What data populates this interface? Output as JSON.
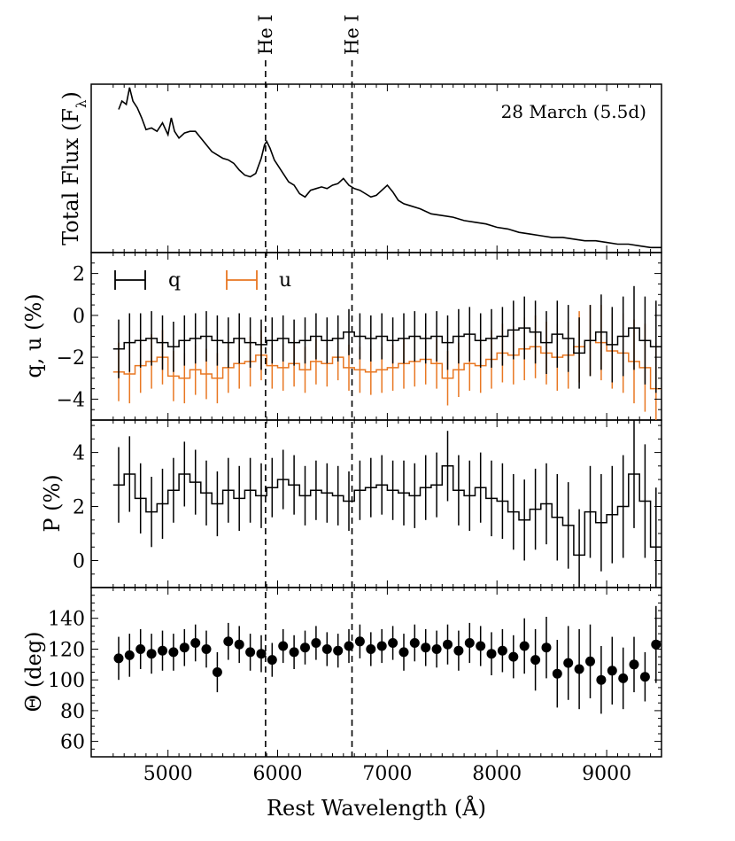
{
  "chart_data": [
    {
      "type": "line",
      "panel": "flux",
      "ylabel": "Total Flux (F",
      "ylabel_subscript": "λ",
      "ylabel_close": ")",
      "annotation": "28 March (5.5d)",
      "xlim": [
        4300,
        9500
      ],
      "ylim": [
        0,
        1
      ],
      "y_ticks_shown": false,
      "x": [
        4550,
        4580,
        4620,
        4650,
        4680,
        4720,
        4760,
        4800,
        4850,
        4900,
        4950,
        5000,
        5030,
        5060,
        5100,
        5150,
        5200,
        5250,
        5300,
        5350,
        5400,
        5450,
        5500,
        5550,
        5600,
        5650,
        5700,
        5750,
        5800,
        5850,
        5880,
        5900,
        5930,
        5970,
        6000,
        6050,
        6100,
        6150,
        6200,
        6250,
        6300,
        6350,
        6400,
        6450,
        6500,
        6550,
        6600,
        6650,
        6700,
        6750,
        6800,
        6850,
        6900,
        6950,
        7000,
        7050,
        7100,
        7150,
        7200,
        7300,
        7400,
        7500,
        7600,
        7700,
        7800,
        7900,
        8000,
        8100,
        8200,
        8300,
        8400,
        8500,
        8600,
        8700,
        8800,
        8900,
        9000,
        9100,
        9200,
        9300,
        9400,
        9500
      ],
      "y": [
        0.85,
        0.9,
        0.88,
        0.98,
        0.9,
        0.86,
        0.8,
        0.73,
        0.74,
        0.72,
        0.77,
        0.7,
        0.8,
        0.72,
        0.68,
        0.71,
        0.72,
        0.72,
        0.68,
        0.64,
        0.6,
        0.58,
        0.56,
        0.55,
        0.53,
        0.49,
        0.46,
        0.45,
        0.47,
        0.56,
        0.64,
        0.66,
        0.62,
        0.55,
        0.52,
        0.47,
        0.42,
        0.4,
        0.35,
        0.33,
        0.37,
        0.38,
        0.39,
        0.38,
        0.4,
        0.41,
        0.44,
        0.4,
        0.38,
        0.37,
        0.35,
        0.33,
        0.34,
        0.37,
        0.4,
        0.36,
        0.31,
        0.29,
        0.28,
        0.26,
        0.23,
        0.22,
        0.21,
        0.19,
        0.18,
        0.17,
        0.15,
        0.14,
        0.12,
        0.11,
        0.1,
        0.09,
        0.09,
        0.08,
        0.07,
        0.07,
        0.06,
        0.05,
        0.05,
        0.04,
        0.03,
        0.03
      ]
    },
    {
      "type": "line",
      "panel": "qu",
      "style": "step-with-errorbars",
      "ylabel": "q, u (%)",
      "xlim": [
        4300,
        9500
      ],
      "ylim": [
        -5,
        3
      ],
      "yticks": [
        -4,
        -2,
        0,
        2
      ],
      "series": [
        {
          "name": "q",
          "color": "#000000",
          "x": [
            4550,
            4650,
            4750,
            4850,
            4950,
            5050,
            5150,
            5250,
            5350,
            5450,
            5550,
            5650,
            5750,
            5850,
            5950,
            6050,
            6150,
            6250,
            6350,
            6450,
            6550,
            6650,
            6750,
            6850,
            6950,
            7050,
            7150,
            7250,
            7350,
            7450,
            7550,
            7650,
            7750,
            7850,
            7950,
            8050,
            8150,
            8250,
            8350,
            8450,
            8550,
            8650,
            8750,
            8850,
            8950,
            9050,
            9150,
            9250,
            9350,
            9450
          ],
          "values": [
            -1.6,
            -1.3,
            -1.2,
            -1.1,
            -1.3,
            -1.5,
            -1.2,
            -1.1,
            -1.0,
            -1.2,
            -1.3,
            -1.1,
            -1.3,
            -1.4,
            -1.2,
            -1.1,
            -1.3,
            -1.2,
            -1.0,
            -1.2,
            -1.1,
            -0.8,
            -1.0,
            -1.1,
            -1.0,
            -1.2,
            -1.1,
            -1.0,
            -1.1,
            -1.0,
            -1.3,
            -1.0,
            -0.9,
            -1.2,
            -1.1,
            -1.0,
            -0.7,
            -0.6,
            -0.8,
            -1.3,
            -0.9,
            -1.1,
            -1.8,
            -1.2,
            -0.8,
            -1.4,
            -1.0,
            -0.6,
            -1.2,
            -1.5
          ],
          "errors": [
            1.4,
            1.4,
            1.3,
            1.3,
            1.3,
            1.2,
            1.2,
            1.2,
            1.2,
            1.2,
            1.2,
            1.2,
            1.2,
            1.2,
            1.1,
            1.1,
            1.1,
            1.1,
            1.1,
            1.1,
            1.1,
            1.1,
            1.1,
            1.1,
            1.1,
            1.1,
            1.2,
            1.2,
            1.2,
            1.2,
            1.3,
            1.3,
            1.3,
            1.3,
            1.4,
            1.4,
            1.4,
            1.5,
            1.5,
            1.5,
            1.6,
            1.6,
            1.7,
            1.7,
            1.8,
            1.8,
            1.9,
            2.0,
            2.1,
            2.2
          ]
        },
        {
          "name": "u",
          "color": "#e87722",
          "x": [
            4550,
            4650,
            4750,
            4850,
            4950,
            5050,
            5150,
            5250,
            5350,
            5450,
            5550,
            5650,
            5750,
            5850,
            5950,
            6050,
            6150,
            6250,
            6350,
            6450,
            6550,
            6650,
            6750,
            6850,
            6950,
            7050,
            7150,
            7250,
            7350,
            7450,
            7550,
            7650,
            7750,
            7850,
            7950,
            8050,
            8150,
            8250,
            8350,
            8450,
            8550,
            8650,
            8750,
            8850,
            8950,
            9050,
            9150,
            9250,
            9350,
            9450
          ],
          "values": [
            -2.7,
            -2.8,
            -2.4,
            -2.2,
            -2.0,
            -2.9,
            -3.0,
            -2.6,
            -2.8,
            -3.0,
            -2.5,
            -2.3,
            -2.2,
            -1.9,
            -2.4,
            -2.5,
            -2.3,
            -2.6,
            -2.2,
            -2.3,
            -2.0,
            -2.5,
            -2.6,
            -2.7,
            -2.6,
            -2.5,
            -2.3,
            -2.2,
            -2.1,
            -2.3,
            -3.0,
            -2.6,
            -2.3,
            -2.4,
            -2.1,
            -1.8,
            -1.9,
            -1.6,
            -1.5,
            -1.8,
            -2.0,
            -1.9,
            -1.5,
            -1.2,
            -1.3,
            -1.7,
            -1.8,
            -2.2,
            -2.5,
            -3.5
          ],
          "errors": [
            1.4,
            1.4,
            1.3,
            1.3,
            1.3,
            1.2,
            1.2,
            1.2,
            1.2,
            1.2,
            1.2,
            1.2,
            1.2,
            1.2,
            1.1,
            1.1,
            1.1,
            1.1,
            1.1,
            1.1,
            1.1,
            1.1,
            1.1,
            1.1,
            1.1,
            1.1,
            1.2,
            1.2,
            1.2,
            1.2,
            1.3,
            1.3,
            1.3,
            1.3,
            1.4,
            1.4,
            1.4,
            1.5,
            1.5,
            1.5,
            1.6,
            1.6,
            1.7,
            1.7,
            1.8,
            1.8,
            1.9,
            2.0,
            2.1,
            2.2
          ]
        }
      ],
      "legend": [
        {
          "name": "q",
          "color": "#000000"
        },
        {
          "name": "u",
          "color": "#e87722"
        }
      ],
      "legend_position": "top-left"
    },
    {
      "type": "line",
      "panel": "P",
      "style": "step-with-errorbars",
      "ylabel": "P (%)",
      "xlim": [
        4300,
        9500
      ],
      "ylim": [
        -1,
        5.2
      ],
      "yticks": [
        0,
        2,
        4
      ],
      "x": [
        4550,
        4650,
        4750,
        4850,
        4950,
        5050,
        5150,
        5250,
        5350,
        5450,
        5550,
        5650,
        5750,
        5850,
        5950,
        6050,
        6150,
        6250,
        6350,
        6450,
        6550,
        6650,
        6750,
        6850,
        6950,
        7050,
        7150,
        7250,
        7350,
        7450,
        7550,
        7650,
        7750,
        7850,
        7950,
        8050,
        8150,
        8250,
        8350,
        8450,
        8550,
        8650,
        8750,
        8850,
        8950,
        9050,
        9150,
        9250,
        9350,
        9450
      ],
      "values": [
        2.8,
        3.2,
        2.3,
        1.8,
        2.1,
        2.6,
        3.2,
        2.9,
        2.5,
        2.1,
        2.6,
        2.3,
        2.6,
        2.4,
        2.7,
        3.0,
        2.8,
        2.4,
        2.6,
        2.5,
        2.4,
        2.2,
        2.6,
        2.7,
        2.8,
        2.6,
        2.5,
        2.4,
        2.7,
        2.8,
        3.5,
        2.6,
        2.4,
        2.7,
        2.3,
        2.2,
        1.8,
        1.5,
        1.9,
        2.1,
        1.6,
        1.3,
        0.2,
        1.8,
        1.4,
        1.7,
        2.0,
        3.2,
        2.2,
        0.5
      ],
      "errors": [
        1.4,
        1.4,
        1.3,
        1.3,
        1.3,
        1.2,
        1.2,
        1.2,
        1.2,
        1.2,
        1.2,
        1.2,
        1.2,
        1.2,
        1.1,
        1.1,
        1.1,
        1.1,
        1.1,
        1.1,
        1.1,
        1.1,
        1.1,
        1.1,
        1.1,
        1.1,
        1.2,
        1.2,
        1.2,
        1.2,
        1.3,
        1.3,
        1.3,
        1.3,
        1.4,
        1.4,
        1.4,
        1.5,
        1.5,
        1.5,
        1.6,
        1.6,
        1.7,
        1.7,
        1.8,
        1.8,
        1.9,
        2.0,
        2.1,
        2.2
      ]
    },
    {
      "type": "scatter",
      "panel": "theta",
      "ylabel": "Θ (deg)",
      "xlabel": "Rest Wavelength (Å)",
      "xlim": [
        4300,
        9500
      ],
      "ylim": [
        50,
        160
      ],
      "yticks": [
        60,
        80,
        100,
        120,
        140
      ],
      "xticks": [
        5000,
        6000,
        7000,
        8000,
        9000
      ],
      "x": [
        4550,
        4650,
        4750,
        4850,
        4950,
        5050,
        5150,
        5250,
        5350,
        5450,
        5550,
        5650,
        5750,
        5850,
        5950,
        6050,
        6150,
        6250,
        6350,
        6450,
        6550,
        6650,
        6750,
        6850,
        6950,
        7050,
        7150,
        7250,
        7350,
        7450,
        7550,
        7650,
        7750,
        7850,
        7950,
        8050,
        8150,
        8250,
        8350,
        8450,
        8550,
        8650,
        8750,
        8850,
        8950,
        9050,
        9150,
        9250,
        9350,
        9450
      ],
      "values": [
        114,
        116,
        120,
        117,
        119,
        118,
        121,
        124,
        120,
        105,
        125,
        123,
        118,
        117,
        113,
        122,
        118,
        121,
        124,
        120,
        119,
        122,
        125,
        120,
        122,
        124,
        118,
        124,
        121,
        120,
        123,
        119,
        124,
        122,
        117,
        119,
        115,
        122,
        113,
        121,
        104,
        111,
        107,
        112,
        100,
        106,
        101,
        110,
        102,
        123
      ],
      "errors": [
        14,
        14,
        13,
        13,
        13,
        12,
        12,
        12,
        12,
        13,
        12,
        12,
        12,
        12,
        11,
        11,
        11,
        11,
        11,
        11,
        11,
        11,
        11,
        11,
        11,
        11,
        12,
        12,
        12,
        12,
        13,
        13,
        13,
        13,
        14,
        14,
        14,
        18,
        20,
        20,
        22,
        24,
        26,
        24,
        22,
        22,
        20,
        18,
        16,
        25
      ]
    }
  ],
  "vertical_lines": [
    {
      "label": "He I",
      "x": 5890
    },
    {
      "label": "He I",
      "x": 6678
    }
  ]
}
